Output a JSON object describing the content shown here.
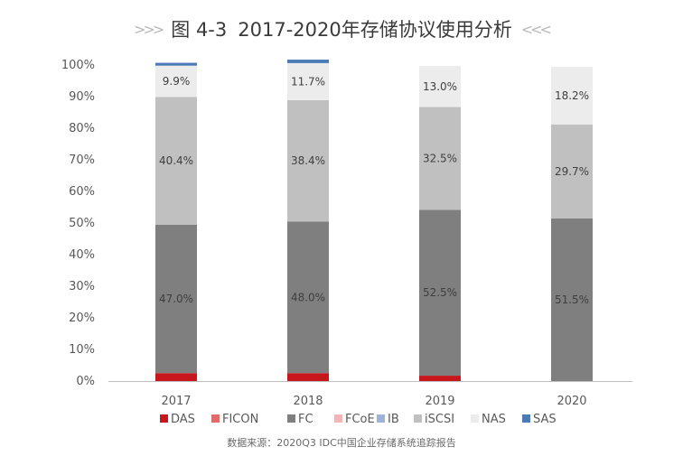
{
  "title": {
    "figure_label": "图 4-3",
    "text": "2017-2020年存储协议使用分析",
    "left_deco": ">>>",
    "right_deco": "<<<"
  },
  "source": "数据来源：2020Q3 IDC中国企业存储系统追踪报告",
  "colors": {
    "DAS": "#c8161d",
    "FICON": "#e06b6b",
    "FC": "#7f7f80",
    "FCoE": "#f3b6b6",
    "IB": "#9db4d8",
    "iSCSI": "#c0c0c0",
    "NAS": "#ececec",
    "SAS": "#4a7bb7",
    "axis": "#bfbfbf",
    "text": "#595959"
  },
  "chart_data": {
    "type": "bar",
    "stacked": true,
    "categories": [
      "2017",
      "2018",
      "2019",
      "2020"
    ],
    "ylim": [
      0,
      100
    ],
    "yticks": [
      "0%",
      "10%",
      "20%",
      "30%",
      "40%",
      "50%",
      "60%",
      "70%",
      "80%",
      "90%",
      "100%"
    ],
    "legend_position": "bottom",
    "grid": false,
    "series": [
      {
        "name": "DAS",
        "values": [
          2.5,
          2.5,
          1.7,
          0.0
        ]
      },
      {
        "name": "FICON",
        "values": [
          0.0,
          0.0,
          0.0,
          0.0
        ]
      },
      {
        "name": "FC",
        "values": [
          47.0,
          48.0,
          52.5,
          51.5
        ]
      },
      {
        "name": "FCoE",
        "values": [
          0.0,
          0.0,
          0.0,
          0.0
        ]
      },
      {
        "name": "IB",
        "values": [
          0.0,
          0.0,
          0.0,
          0.0
        ]
      },
      {
        "name": "iSCSI",
        "values": [
          40.4,
          38.4,
          32.5,
          29.7
        ]
      },
      {
        "name": "NAS",
        "values": [
          9.9,
          11.7,
          13.0,
          18.2
        ]
      },
      {
        "name": "SAS",
        "values": [
          0.9,
          1.1,
          0.0,
          0.0
        ]
      }
    ],
    "data_labels": {
      "FC": [
        "47.0%",
        "48.0%",
        "52.5%",
        "51.5%"
      ],
      "iSCSI": [
        "40.4%",
        "38.4%",
        "32.5%",
        "29.7%"
      ],
      "NAS": [
        "9.9%",
        "11.7%",
        "13.0%",
        "18.2%"
      ]
    }
  }
}
